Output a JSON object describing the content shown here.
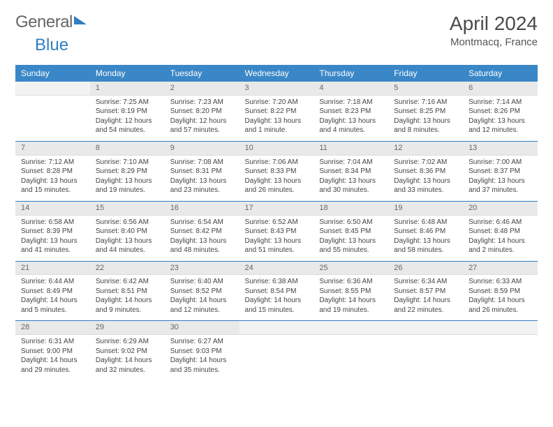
{
  "logo": {
    "part1": "General",
    "part2": "Blue"
  },
  "title": "April 2024",
  "location": "Montmacq, France",
  "colors": {
    "header_bg": "#3a87c7",
    "header_text": "#ffffff",
    "daynum_bg": "#e9e9e9",
    "row_divider": "#2f7ec2",
    "text": "#444444"
  },
  "fonts": {
    "title_size": 28,
    "location_size": 15,
    "head_size": 12,
    "cell_size": 10
  },
  "weekdays": [
    "Sunday",
    "Monday",
    "Tuesday",
    "Wednesday",
    "Thursday",
    "Friday",
    "Saturday"
  ],
  "weeks": [
    [
      {
        "num": "",
        "sunrise": "",
        "sunset": "",
        "daylight1": "",
        "daylight2": ""
      },
      {
        "num": "1",
        "sunrise": "Sunrise: 7:25 AM",
        "sunset": "Sunset: 8:19 PM",
        "daylight1": "Daylight: 12 hours",
        "daylight2": "and 54 minutes."
      },
      {
        "num": "2",
        "sunrise": "Sunrise: 7:23 AM",
        "sunset": "Sunset: 8:20 PM",
        "daylight1": "Daylight: 12 hours",
        "daylight2": "and 57 minutes."
      },
      {
        "num": "3",
        "sunrise": "Sunrise: 7:20 AM",
        "sunset": "Sunset: 8:22 PM",
        "daylight1": "Daylight: 13 hours",
        "daylight2": "and 1 minute."
      },
      {
        "num": "4",
        "sunrise": "Sunrise: 7:18 AM",
        "sunset": "Sunset: 8:23 PM",
        "daylight1": "Daylight: 13 hours",
        "daylight2": "and 4 minutes."
      },
      {
        "num": "5",
        "sunrise": "Sunrise: 7:16 AM",
        "sunset": "Sunset: 8:25 PM",
        "daylight1": "Daylight: 13 hours",
        "daylight2": "and 8 minutes."
      },
      {
        "num": "6",
        "sunrise": "Sunrise: 7:14 AM",
        "sunset": "Sunset: 8:26 PM",
        "daylight1": "Daylight: 13 hours",
        "daylight2": "and 12 minutes."
      }
    ],
    [
      {
        "num": "7",
        "sunrise": "Sunrise: 7:12 AM",
        "sunset": "Sunset: 8:28 PM",
        "daylight1": "Daylight: 13 hours",
        "daylight2": "and 15 minutes."
      },
      {
        "num": "8",
        "sunrise": "Sunrise: 7:10 AM",
        "sunset": "Sunset: 8:29 PM",
        "daylight1": "Daylight: 13 hours",
        "daylight2": "and 19 minutes."
      },
      {
        "num": "9",
        "sunrise": "Sunrise: 7:08 AM",
        "sunset": "Sunset: 8:31 PM",
        "daylight1": "Daylight: 13 hours",
        "daylight2": "and 23 minutes."
      },
      {
        "num": "10",
        "sunrise": "Sunrise: 7:06 AM",
        "sunset": "Sunset: 8:33 PM",
        "daylight1": "Daylight: 13 hours",
        "daylight2": "and 26 minutes."
      },
      {
        "num": "11",
        "sunrise": "Sunrise: 7:04 AM",
        "sunset": "Sunset: 8:34 PM",
        "daylight1": "Daylight: 13 hours",
        "daylight2": "and 30 minutes."
      },
      {
        "num": "12",
        "sunrise": "Sunrise: 7:02 AM",
        "sunset": "Sunset: 8:36 PM",
        "daylight1": "Daylight: 13 hours",
        "daylight2": "and 33 minutes."
      },
      {
        "num": "13",
        "sunrise": "Sunrise: 7:00 AM",
        "sunset": "Sunset: 8:37 PM",
        "daylight1": "Daylight: 13 hours",
        "daylight2": "and 37 minutes."
      }
    ],
    [
      {
        "num": "14",
        "sunrise": "Sunrise: 6:58 AM",
        "sunset": "Sunset: 8:39 PM",
        "daylight1": "Daylight: 13 hours",
        "daylight2": "and 41 minutes."
      },
      {
        "num": "15",
        "sunrise": "Sunrise: 6:56 AM",
        "sunset": "Sunset: 8:40 PM",
        "daylight1": "Daylight: 13 hours",
        "daylight2": "and 44 minutes."
      },
      {
        "num": "16",
        "sunrise": "Sunrise: 6:54 AM",
        "sunset": "Sunset: 8:42 PM",
        "daylight1": "Daylight: 13 hours",
        "daylight2": "and 48 minutes."
      },
      {
        "num": "17",
        "sunrise": "Sunrise: 6:52 AM",
        "sunset": "Sunset: 8:43 PM",
        "daylight1": "Daylight: 13 hours",
        "daylight2": "and 51 minutes."
      },
      {
        "num": "18",
        "sunrise": "Sunrise: 6:50 AM",
        "sunset": "Sunset: 8:45 PM",
        "daylight1": "Daylight: 13 hours",
        "daylight2": "and 55 minutes."
      },
      {
        "num": "19",
        "sunrise": "Sunrise: 6:48 AM",
        "sunset": "Sunset: 8:46 PM",
        "daylight1": "Daylight: 13 hours",
        "daylight2": "and 58 minutes."
      },
      {
        "num": "20",
        "sunrise": "Sunrise: 6:46 AM",
        "sunset": "Sunset: 8:48 PM",
        "daylight1": "Daylight: 14 hours",
        "daylight2": "and 2 minutes."
      }
    ],
    [
      {
        "num": "21",
        "sunrise": "Sunrise: 6:44 AM",
        "sunset": "Sunset: 8:49 PM",
        "daylight1": "Daylight: 14 hours",
        "daylight2": "and 5 minutes."
      },
      {
        "num": "22",
        "sunrise": "Sunrise: 6:42 AM",
        "sunset": "Sunset: 8:51 PM",
        "daylight1": "Daylight: 14 hours",
        "daylight2": "and 9 minutes."
      },
      {
        "num": "23",
        "sunrise": "Sunrise: 6:40 AM",
        "sunset": "Sunset: 8:52 PM",
        "daylight1": "Daylight: 14 hours",
        "daylight2": "and 12 minutes."
      },
      {
        "num": "24",
        "sunrise": "Sunrise: 6:38 AM",
        "sunset": "Sunset: 8:54 PM",
        "daylight1": "Daylight: 14 hours",
        "daylight2": "and 15 minutes."
      },
      {
        "num": "25",
        "sunrise": "Sunrise: 6:36 AM",
        "sunset": "Sunset: 8:55 PM",
        "daylight1": "Daylight: 14 hours",
        "daylight2": "and 19 minutes."
      },
      {
        "num": "26",
        "sunrise": "Sunrise: 6:34 AM",
        "sunset": "Sunset: 8:57 PM",
        "daylight1": "Daylight: 14 hours",
        "daylight2": "and 22 minutes."
      },
      {
        "num": "27",
        "sunrise": "Sunrise: 6:33 AM",
        "sunset": "Sunset: 8:59 PM",
        "daylight1": "Daylight: 14 hours",
        "daylight2": "and 26 minutes."
      }
    ],
    [
      {
        "num": "28",
        "sunrise": "Sunrise: 6:31 AM",
        "sunset": "Sunset: 9:00 PM",
        "daylight1": "Daylight: 14 hours",
        "daylight2": "and 29 minutes."
      },
      {
        "num": "29",
        "sunrise": "Sunrise: 6:29 AM",
        "sunset": "Sunset: 9:02 PM",
        "daylight1": "Daylight: 14 hours",
        "daylight2": "and 32 minutes."
      },
      {
        "num": "30",
        "sunrise": "Sunrise: 6:27 AM",
        "sunset": "Sunset: 9:03 PM",
        "daylight1": "Daylight: 14 hours",
        "daylight2": "and 35 minutes."
      },
      {
        "num": "",
        "sunrise": "",
        "sunset": "",
        "daylight1": "",
        "daylight2": ""
      },
      {
        "num": "",
        "sunrise": "",
        "sunset": "",
        "daylight1": "",
        "daylight2": ""
      },
      {
        "num": "",
        "sunrise": "",
        "sunset": "",
        "daylight1": "",
        "daylight2": ""
      },
      {
        "num": "",
        "sunrise": "",
        "sunset": "",
        "daylight1": "",
        "daylight2": ""
      }
    ]
  ]
}
